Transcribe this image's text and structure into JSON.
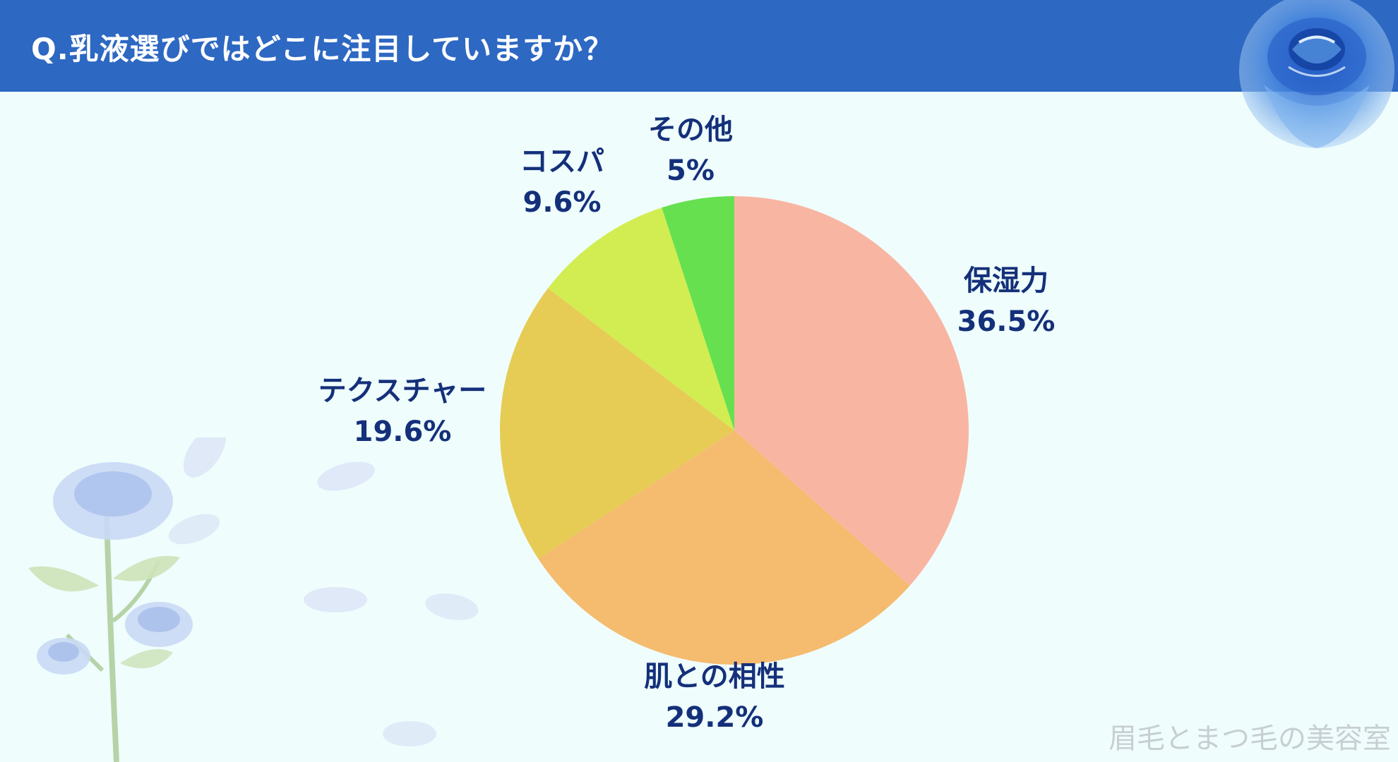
{
  "header": {
    "title": "Q.乳液選びではどこに注目していますか？"
  },
  "colors": {
    "header_bg": "#2d68c2",
    "page_bg": "#effdfd",
    "label_text": "#14307a"
  },
  "chart_data": {
    "type": "pie",
    "title": "Q.乳液選びではどこに注目していますか？",
    "start_angle_deg": 0,
    "direction": "clockwise",
    "slices": [
      {
        "label": "保湿力",
        "value": 36.5,
        "value_label": "36.5%",
        "color": "#f8b6a2"
      },
      {
        "label": "肌との相性",
        "value": 29.2,
        "value_label": "29.2%",
        "color": "#f5bb6e"
      },
      {
        "label": "テクスチャー",
        "value": 19.6,
        "value_label": "19.6%",
        "color": "#e6cc55"
      },
      {
        "label": "コスパ",
        "value": 9.6,
        "value_label": "9.6%",
        "color": "#d2ed52"
      },
      {
        "label": "その他",
        "value": 5,
        "value_label": "5%",
        "color": "#66e04f"
      }
    ]
  },
  "watermark": "眉毛とまつ毛の美容室"
}
